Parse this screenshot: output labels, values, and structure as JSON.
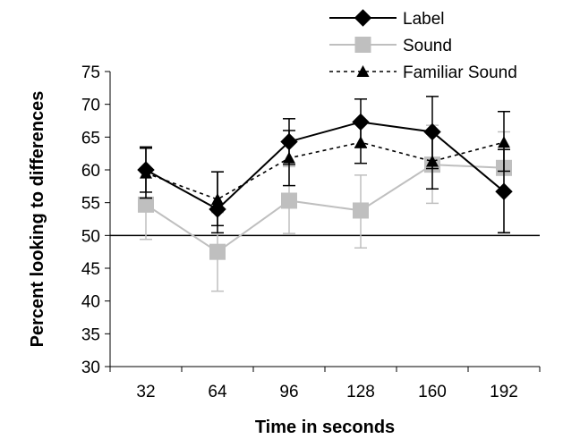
{
  "chart_data": {
    "type": "line",
    "title": "",
    "xlabel": "Time in seconds",
    "ylabel": "Percent looking to differences",
    "categories": [
      "32",
      "64",
      "96",
      "128",
      "160",
      "192"
    ],
    "ylim": [
      30,
      75
    ],
    "yticks": [
      30,
      35,
      40,
      45,
      50,
      55,
      60,
      65,
      70,
      75
    ],
    "reference_line": 50,
    "grid": false,
    "legend_position": "top-right",
    "series": [
      {
        "name": "Label",
        "values": [
          60.0,
          54.0,
          64.3,
          67.3,
          65.8,
          56.7
        ],
        "error_low": [
          56.6,
          50.4,
          60.8,
          63.4,
          60.2,
          50.4
        ],
        "error_high": [
          63.5,
          59.7,
          67.8,
          70.8,
          71.2,
          63.1
        ],
        "color": "#000000",
        "marker": "diamond",
        "line_style": "solid"
      },
      {
        "name": "Sound",
        "values": [
          54.7,
          47.5,
          55.3,
          53.8,
          60.8,
          60.3
        ],
        "error_low": [
          49.4,
          41.5,
          50.3,
          48.1,
          54.9,
          50.5
        ],
        "error_high": [
          60.0,
          53.5,
          60.5,
          59.2,
          66.8,
          65.8
        ],
        "color": "#bfbfbf",
        "marker": "square",
        "line_style": "solid"
      },
      {
        "name": "Familiar Sound",
        "values": [
          59.5,
          55.5,
          61.8,
          64.2,
          61.3,
          64.2
        ],
        "error_low": [
          55.7,
          51.5,
          57.6,
          61.0,
          57.1,
          59.8
        ],
        "error_high": [
          63.3,
          59.7,
          66.0,
          67.4,
          65.5,
          68.9
        ],
        "color": "#000000",
        "marker": "triangle",
        "line_style": "dotted"
      }
    ]
  }
}
